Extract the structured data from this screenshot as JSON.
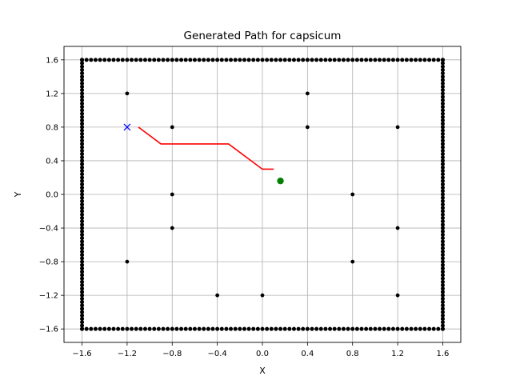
{
  "chart_data": {
    "type": "scatter",
    "title": "Generated Path for capsicum",
    "xlabel": "X",
    "ylabel": "Y",
    "xlim": [
      -1.76,
      1.76
    ],
    "ylim": [
      -1.76,
      1.76
    ],
    "grid": true,
    "xticks": [
      -1.6,
      -1.2,
      -0.8,
      -0.4,
      0.0,
      0.4,
      0.8,
      1.2,
      1.6
    ],
    "yticks": [
      -1.6,
      -1.2,
      -0.8,
      -0.4,
      0.0,
      0.4,
      0.8,
      1.2,
      1.6
    ],
    "xtick_labels": [
      "−1.6",
      "−1.2",
      "−0.8",
      "−0.4",
      "0.0",
      "0.4",
      "0.8",
      "1.2",
      "1.6"
    ],
    "ytick_labels": [
      "−1.6",
      "−1.2",
      "−0.8",
      "−0.4",
      "0.0",
      "0.4",
      "0.8",
      "1.2",
      "1.6"
    ],
    "boundary": {
      "x_min": -1.6,
      "x_max": 1.6,
      "y_min": -1.6,
      "y_max": 1.6,
      "spacing": 0.04,
      "color": "#000000"
    },
    "obstacles": {
      "color": "#000000",
      "points": [
        [
          -1.2,
          1.2
        ],
        [
          0.4,
          1.2
        ],
        [
          -0.8,
          0.8
        ],
        [
          0.4,
          0.8
        ],
        [
          1.2,
          0.8
        ],
        [
          -0.8,
          0.0
        ],
        [
          0.8,
          0.0
        ],
        [
          -0.8,
          -0.4
        ],
        [
          1.2,
          -0.4
        ],
        [
          -1.2,
          -0.8
        ],
        [
          0.8,
          -0.8
        ],
        [
          -0.4,
          -1.2
        ],
        [
          0.0,
          -1.2
        ],
        [
          1.2,
          -1.2
        ]
      ]
    },
    "path": {
      "color": "#ff0000",
      "points": [
        [
          -1.1,
          0.8
        ],
        [
          -0.9,
          0.6
        ],
        [
          -0.3,
          0.6
        ],
        [
          0.0,
          0.3
        ],
        [
          0.1,
          0.3
        ]
      ]
    },
    "start": {
      "x": -1.2,
      "y": 0.8,
      "marker": "x",
      "color": "#0000ff"
    },
    "goal": {
      "x": 0.16,
      "y": 0.16,
      "marker": "circle",
      "color": "#008000"
    }
  }
}
